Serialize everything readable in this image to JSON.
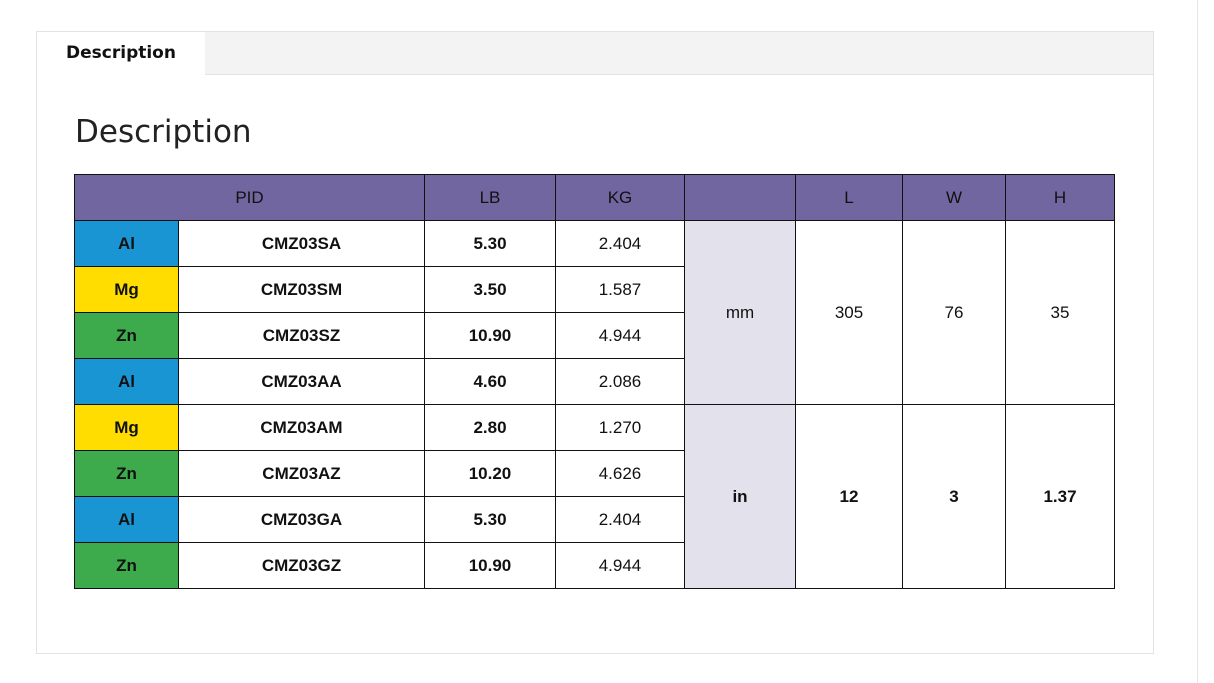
{
  "tab": {
    "label": "Description"
  },
  "heading": "Description",
  "table": {
    "header": [
      "PID",
      "LB",
      "KG",
      "L",
      "W",
      "H"
    ],
    "rows": [
      {
        "material": "Al",
        "color": "#1a95d3",
        "pid": "CMZ03SA",
        "lb": "5.30",
        "kg": "2.404"
      },
      {
        "material": "Mg",
        "color": "#ffdd00",
        "pid": "CMZ03SM",
        "lb": "3.50",
        "kg": "1.587"
      },
      {
        "material": "Zn",
        "color": "#3dab4b",
        "pid": "CMZ03SZ",
        "lb": "10.90",
        "kg": "4.944"
      },
      {
        "material": "Al",
        "color": "#1a95d3",
        "pid": "CMZ03AA",
        "lb": "4.60",
        "kg": "2.086"
      },
      {
        "material": "Mg",
        "color": "#ffdd00",
        "pid": "CMZ03AM",
        "lb": "2.80",
        "kg": "1.270"
      },
      {
        "material": "Zn",
        "color": "#3dab4b",
        "pid": "CMZ03AZ",
        "lb": "10.20",
        "kg": "4.626"
      },
      {
        "material": "Al",
        "color": "#1a95d3",
        "pid": "CMZ03GA",
        "lb": "5.30",
        "kg": "2.404"
      },
      {
        "material": "Zn",
        "color": "#3dab4b",
        "pid": "CMZ03GZ",
        "lb": "10.90",
        "kg": "4.944"
      }
    ],
    "groups": [
      {
        "unit": "mm",
        "l": "305",
        "w": "76",
        "h": "35",
        "bold": false
      },
      {
        "unit": "in",
        "l": "12",
        "w": "3",
        "h": "1.37",
        "bold": true
      }
    ]
  }
}
